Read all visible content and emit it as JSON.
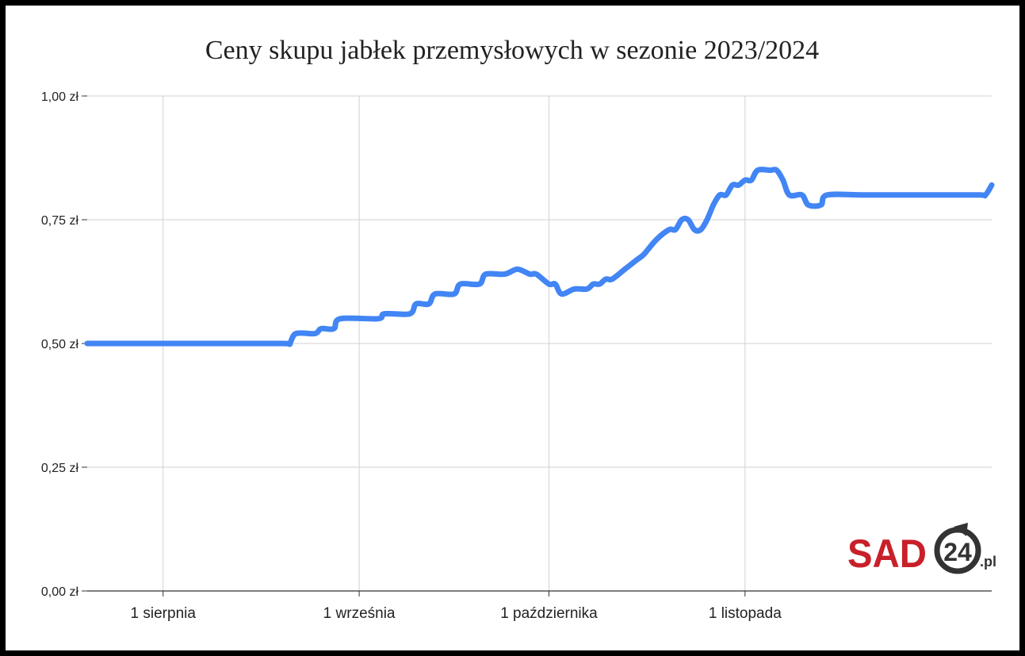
{
  "chart_data": {
    "type": "line",
    "title": "Ceny skupu jabłek przemysłowych w sezonie 2023/2024",
    "xlabel": "",
    "ylabel": "",
    "y_ticks": [
      "0,00 zł",
      "0,25 zł",
      "0,50 zł",
      "0,75 zł",
      "1,00 zł"
    ],
    "y_tick_values": [
      0,
      0.25,
      0.5,
      0.75,
      1.0
    ],
    "ylim": [
      0,
      1.0
    ],
    "x_ticks": [
      "1 sierpnia",
      "1 września",
      "1 października",
      "1 listopada"
    ],
    "x_tick_dates": [
      "2023-08-01",
      "2023-09-01",
      "2023-10-01",
      "2023-11-01"
    ],
    "xlim": [
      "2023-07-20",
      "2023-12-10"
    ],
    "grid": true,
    "color": "#4285f4",
    "series": [
      {
        "points": [
          [
            "2023-07-20",
            0.5
          ],
          [
            "2023-08-10",
            0.5
          ],
          [
            "2023-08-20",
            0.5
          ],
          [
            "2023-08-21",
            0.5
          ],
          [
            "2023-08-22",
            0.52
          ],
          [
            "2023-08-25",
            0.52
          ],
          [
            "2023-08-26",
            0.53
          ],
          [
            "2023-08-28",
            0.53
          ],
          [
            "2023-08-29",
            0.55
          ],
          [
            "2023-09-04",
            0.55
          ],
          [
            "2023-09-05",
            0.56
          ],
          [
            "2023-09-09",
            0.56
          ],
          [
            "2023-09-10",
            0.58
          ],
          [
            "2023-09-12",
            0.58
          ],
          [
            "2023-09-13",
            0.6
          ],
          [
            "2023-09-16",
            0.6
          ],
          [
            "2023-09-17",
            0.62
          ],
          [
            "2023-09-20",
            0.62
          ],
          [
            "2023-09-21",
            0.64
          ],
          [
            "2023-09-24",
            0.64
          ],
          [
            "2023-09-26",
            0.65
          ],
          [
            "2023-09-28",
            0.64
          ],
          [
            "2023-09-29",
            0.64
          ],
          [
            "2023-10-01",
            0.62
          ],
          [
            "2023-10-02",
            0.62
          ],
          [
            "2023-10-03",
            0.6
          ],
          [
            "2023-10-05",
            0.61
          ],
          [
            "2023-10-07",
            0.61
          ],
          [
            "2023-10-08",
            0.62
          ],
          [
            "2023-10-09",
            0.62
          ],
          [
            "2023-10-10",
            0.63
          ],
          [
            "2023-10-11",
            0.63
          ],
          [
            "2023-10-13",
            0.65
          ],
          [
            "2023-10-15",
            0.67
          ],
          [
            "2023-10-16",
            0.68
          ],
          [
            "2023-10-18",
            0.71
          ],
          [
            "2023-10-20",
            0.73
          ],
          [
            "2023-10-21",
            0.73
          ],
          [
            "2023-10-22",
            0.75
          ],
          [
            "2023-10-23",
            0.75
          ],
          [
            "2023-10-24",
            0.73
          ],
          [
            "2023-10-25",
            0.73
          ],
          [
            "2023-10-26",
            0.75
          ],
          [
            "2023-10-27",
            0.78
          ],
          [
            "2023-10-28",
            0.8
          ],
          [
            "2023-10-29",
            0.8
          ],
          [
            "2023-10-30",
            0.82
          ],
          [
            "2023-10-31",
            0.82
          ],
          [
            "2023-11-01",
            0.83
          ],
          [
            "2023-11-02",
            0.83
          ],
          [
            "2023-11-03",
            0.85
          ],
          [
            "2023-11-05",
            0.85
          ],
          [
            "2023-11-06",
            0.85
          ],
          [
            "2023-11-07",
            0.83
          ],
          [
            "2023-11-08",
            0.8
          ],
          [
            "2023-11-10",
            0.8
          ],
          [
            "2023-11-11",
            0.78
          ],
          [
            "2023-11-13",
            0.78
          ],
          [
            "2023-11-14",
            0.8
          ],
          [
            "2023-11-20",
            0.8
          ],
          [
            "2023-11-30",
            0.8
          ],
          [
            "2023-12-08",
            0.8
          ],
          [
            "2023-12-09",
            0.8
          ],
          [
            "2023-12-10",
            0.82
          ]
        ]
      }
    ]
  },
  "logo": {
    "brand": "SAD",
    "number": "24",
    "suffix": ".pl",
    "brand_color": "#c8202a",
    "ring_color": "#333333"
  }
}
